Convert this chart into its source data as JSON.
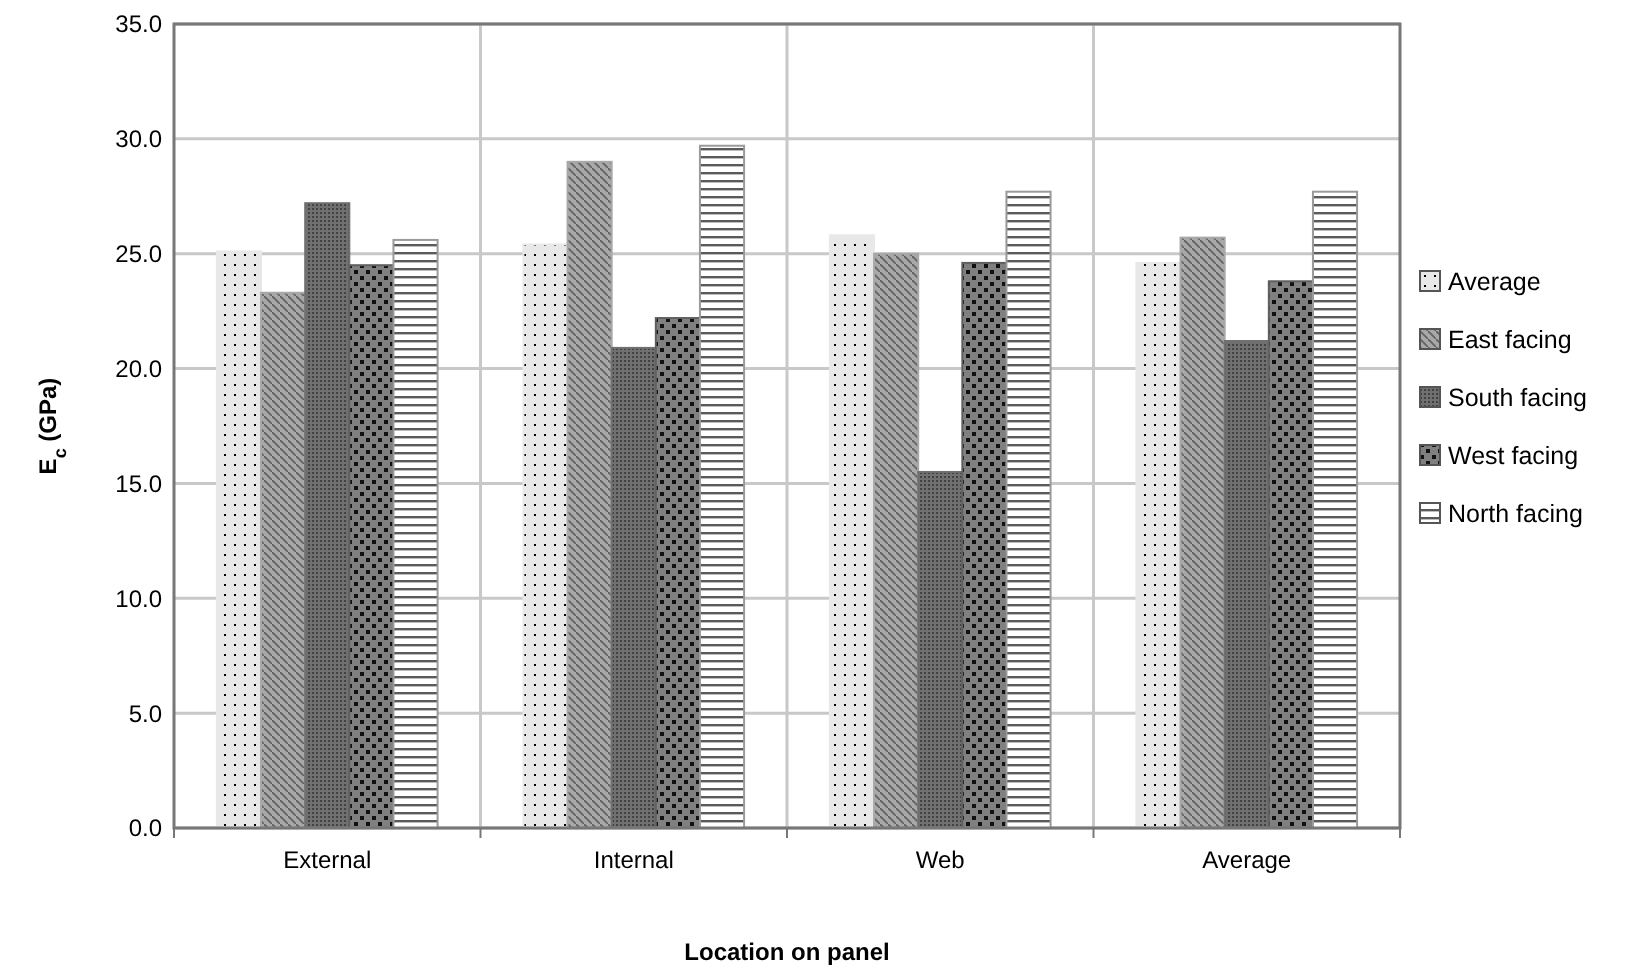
{
  "chart_data": {
    "type": "bar",
    "xlabel": "Location on panel",
    "ylabel": "E$_{c}$ (GPa)",
    "categories": [
      "External",
      "Internal",
      "Web",
      "Average"
    ],
    "series": [
      {
        "name": "Average",
        "color": "#e8e8e8",
        "values": [
          25.1,
          25.4,
          25.8,
          24.6
        ]
      },
      {
        "name": "East facing",
        "color": "#a8a8a8",
        "values": [
          23.3,
          29.0,
          25.0,
          25.7
        ]
      },
      {
        "name": "South facing",
        "color": "#707070",
        "values": [
          27.2,
          20.9,
          15.5,
          21.2
        ]
      },
      {
        "name": "West facing",
        "color": "#606060",
        "values": [
          24.5,
          22.2,
          24.6,
          23.8
        ]
      },
      {
        "name": "North facing",
        "color": "#9a9a9a",
        "values": [
          25.6,
          29.7,
          27.7,
          27.7
        ]
      }
    ],
    "ylim": [
      0,
      35
    ],
    "yticks": [
      {
        "value": 0,
        "label": "0.0"
      },
      {
        "value": 5,
        "label": "5.0"
      },
      {
        "value": 10,
        "label": "10.0"
      },
      {
        "value": 15,
        "label": "15.0"
      },
      {
        "value": 20,
        "label": "20.0"
      },
      {
        "value": 25,
        "label": "25.0"
      },
      {
        "value": 30,
        "label": "30.0"
      },
      {
        "value": 35,
        "label": "35.0"
      }
    ],
    "grid": true,
    "legend": "right"
  }
}
